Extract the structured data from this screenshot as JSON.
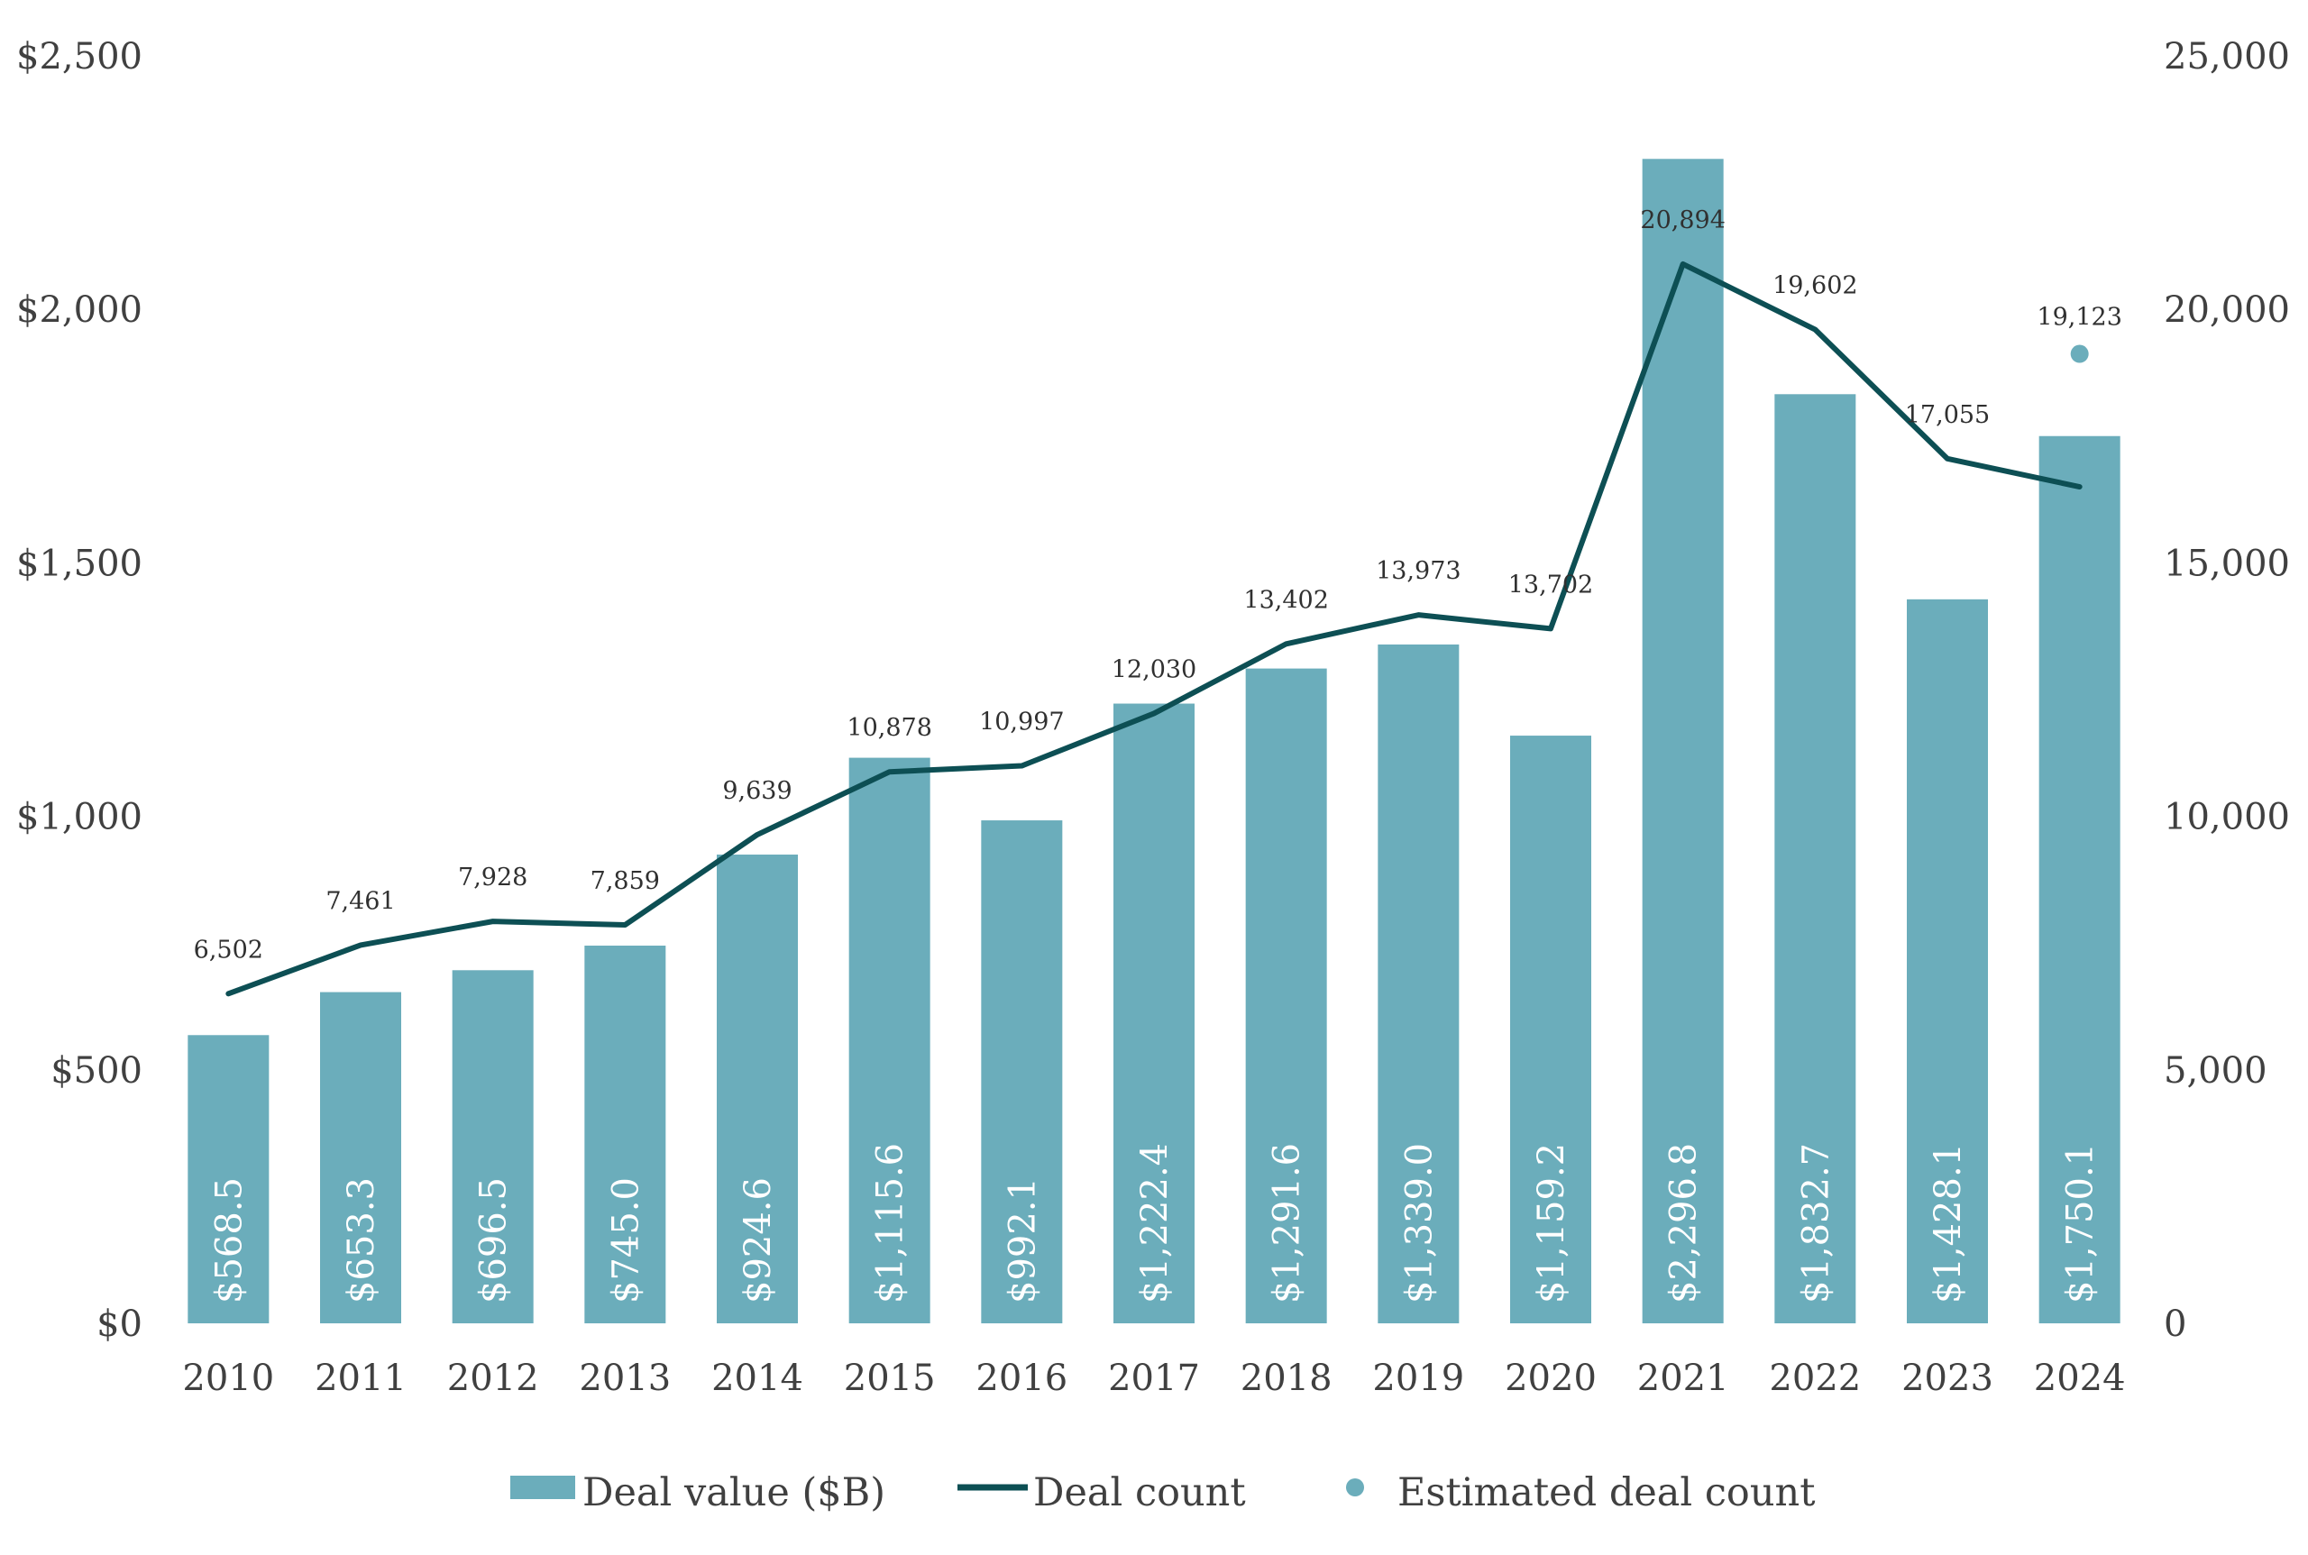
{
  "chart_data": {
    "type": "bar",
    "categories": [
      "2010",
      "2011",
      "2012",
      "2013",
      "2014",
      "2015",
      "2016",
      "2017",
      "2018",
      "2019",
      "2020",
      "2021",
      "2022",
      "2023",
      "2024"
    ],
    "series": [
      {
        "name": "Deal value ($B)",
        "type": "bar",
        "axis": "left",
        "color": "#6BADBB",
        "values": [
          568.5,
          653.3,
          696.5,
          745.0,
          924.6,
          1115.6,
          992.1,
          1222.4,
          1291.6,
          1339.0,
          1159.2,
          2296.8,
          1832.7,
          1428.1,
          1750.1
        ],
        "labels": [
          "$568.5",
          "$653.3",
          "$696.5",
          "$745.0",
          "$924.6",
          "$1,115.6",
          "$992.1",
          "$1,222.4",
          "$1,291.6",
          "$1,339.0",
          "$1,159.2",
          "$2,296.8",
          "$1,832.7",
          "$1,428.1",
          "$1,750.1"
        ]
      },
      {
        "name": "Deal count",
        "type": "line",
        "axis": "right",
        "color": "#0D4F54",
        "values": [
          6502,
          7461,
          7928,
          7859,
          9639,
          10878,
          10997,
          12030,
          13402,
          13973,
          13702,
          20894,
          19602,
          17055,
          16500
        ],
        "labels": [
          "6,502",
          "7,461",
          "7,928",
          "7,859",
          "9,639",
          "10,878",
          "10,997",
          "12,030",
          "13,402",
          "13,973",
          "13,702",
          "20,894",
          "19,602",
          "17,055",
          ""
        ]
      },
      {
        "name": "Estimated deal count",
        "type": "scatter",
        "axis": "right",
        "color": "#6BADBB",
        "points": [
          {
            "x": "2024",
            "y": 19123,
            "label": "19,123"
          }
        ]
      }
    ],
    "left_axis": {
      "ylim": [
        0,
        2500
      ],
      "ticks": [
        0,
        500,
        1000,
        1500,
        2000,
        2500
      ],
      "tick_labels": [
        "$0",
        "$500",
        "$1,000",
        "$1,500",
        "$2,000",
        "$2,500"
      ]
    },
    "right_axis": {
      "ylim": [
        0,
        25000
      ],
      "ticks": [
        0,
        5000,
        10000,
        15000,
        20000,
        25000
      ],
      "tick_labels": [
        "0",
        "5,000",
        "10,000",
        "15,000",
        "20,000",
        "25,000"
      ]
    },
    "grid": false,
    "legend": {
      "position": "bottom",
      "items": [
        {
          "label": "Deal value ($B)",
          "marker": "bar",
          "color": "#6BADBB"
        },
        {
          "label": "Deal count",
          "marker": "line",
          "color": "#0D4F54"
        },
        {
          "label": "Estimated deal count",
          "marker": "dot",
          "color": "#6BADBB"
        }
      ]
    }
  }
}
